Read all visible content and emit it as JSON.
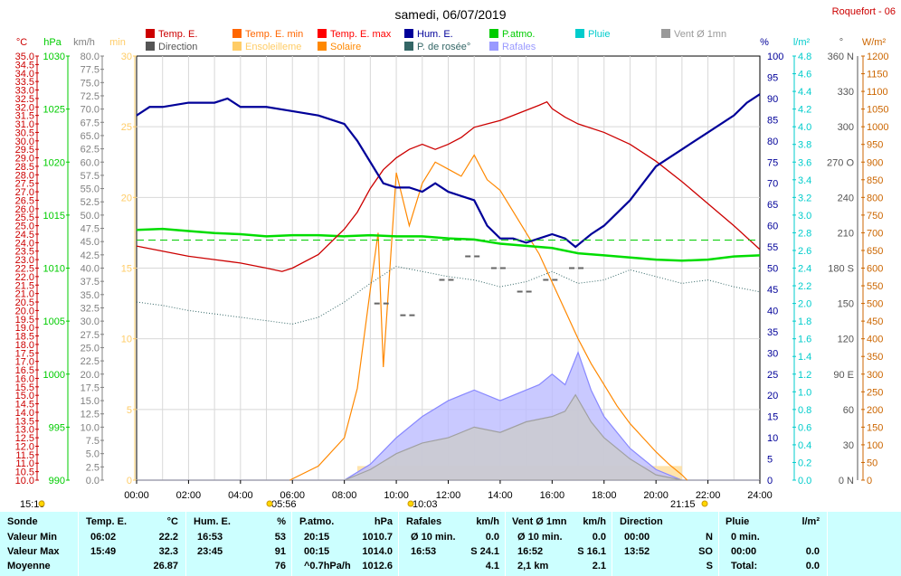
{
  "chart_data": {
    "type": "line",
    "title": "samedi, 06/07/2019",
    "station": "Roquefort - 06",
    "legend": [
      {
        "label": "Temp. E.",
        "color": "#cc0000"
      },
      {
        "label": "Temp. E. min",
        "color": "#ff6600"
      },
      {
        "label": "Temp. E. max",
        "color": "#ff0000"
      },
      {
        "label": "Hum. E.",
        "color": "#000099"
      },
      {
        "label": "P.atmo.",
        "color": "#00cc00"
      },
      {
        "label": "Pluie",
        "color": "#00cccc"
      },
      {
        "label": "Vent Ø 1mn",
        "color": "#999999"
      },
      {
        "label": "Direction",
        "color": "#555555"
      },
      {
        "label": "Ensoleilleme",
        "color": "#ffcc66"
      },
      {
        "label": "Solaire",
        "color": "#ff8800"
      },
      {
        "label": "P. de rosée°",
        "color": "#336666"
      },
      {
        "label": "Rafales",
        "color": "#9999ff"
      }
    ],
    "axes": {
      "temp": {
        "unit": "°C",
        "min": 10,
        "max": 35,
        "step": 0.5,
        "color": "#cc0000"
      },
      "pressure": {
        "unit": "hPa",
        "min": 990,
        "max": 1030,
        "step": 5,
        "color": "#00cc00"
      },
      "wind": {
        "unit": "km/h",
        "min": 0,
        "max": 80,
        "step": 2.5,
        "color": "#808080"
      },
      "min_axis": {
        "unit": "min",
        "min": 0,
        "max": 30,
        "step": 5,
        "color": "#ffcc66"
      },
      "humidity": {
        "unit": "%",
        "min": 0,
        "max": 100,
        "step": 5,
        "color": "#000099"
      },
      "rain": {
        "unit": "l/m²",
        "min": 0,
        "max": 4.8,
        "step": 0.2,
        "color": "#00cccc"
      },
      "direction": {
        "unit": "°",
        "ticks": [
          "0 N",
          "30",
          "60",
          "90 E",
          "120",
          "150",
          "180 S",
          "210",
          "240",
          "270 O",
          "300",
          "330",
          "360 N"
        ],
        "color": "#555555"
      },
      "solar": {
        "unit": "W/m²",
        "min": 0,
        "max": 1200,
        "step": 50,
        "color": "#cc6600"
      }
    },
    "x_ticks": [
      "00:00",
      "02:00",
      "04:00",
      "06:00",
      "08:00",
      "10:00",
      "12:00",
      "14:00",
      "16:00",
      "18:00",
      "20:00",
      "22:00",
      "24:00"
    ],
    "sun_markers": [
      {
        "label": "15:19",
        "note": "day length"
      },
      {
        "label": "05:56",
        "note": "sunrise"
      },
      {
        "label": "10:03",
        "note": "sunshine"
      },
      {
        "label": "21:15",
        "note": "sunset"
      }
    ],
    "series": [
      {
        "name": "Temp. E.",
        "axis": "temp",
        "x_hours": [
          0,
          1,
          2,
          3,
          4,
          5,
          5.6,
          6,
          7,
          8,
          8.5,
          9,
          9.5,
          10,
          10.5,
          11,
          11.5,
          12,
          12.5,
          13,
          13.5,
          14,
          14.5,
          15,
          15.5,
          15.8,
          16,
          16.5,
          17,
          18,
          19,
          20,
          21,
          22,
          23,
          24
        ],
        "values": [
          23.8,
          23.5,
          23.2,
          23.0,
          22.8,
          22.5,
          22.3,
          22.5,
          23.3,
          24.8,
          25.8,
          27.2,
          28.3,
          29.0,
          29.5,
          29.8,
          29.5,
          29.8,
          30.2,
          30.8,
          31.0,
          31.2,
          31.5,
          31.8,
          32.1,
          32.3,
          31.9,
          31.4,
          31.0,
          30.5,
          29.8,
          28.8,
          27.6,
          26.3,
          25.0,
          23.6
        ]
      },
      {
        "name": "Hum. E.",
        "axis": "humidity",
        "x_hours": [
          0,
          0.5,
          1,
          2,
          3,
          3.5,
          4,
          5,
          6,
          7,
          8,
          8.5,
          9,
          9.5,
          10,
          10.5,
          11,
          11.5,
          12,
          12.5,
          13,
          13.5,
          14,
          14.5,
          15,
          15.5,
          16,
          16.5,
          16.9,
          17.5,
          18,
          18.5,
          19,
          19.5,
          20,
          21,
          22,
          23,
          23.5,
          24
        ],
        "values": [
          86,
          88,
          88,
          89,
          89,
          90,
          88,
          88,
          87,
          86,
          84,
          80,
          75,
          70,
          69,
          69,
          68,
          70,
          68,
          67,
          66,
          60,
          57,
          57,
          56,
          57,
          58,
          57,
          55,
          58,
          60,
          63,
          66,
          70,
          74,
          78,
          82,
          86,
          89,
          91
        ]
      },
      {
        "name": "P.atmo.",
        "axis": "pressure",
        "x_hours": [
          0,
          1,
          2,
          3,
          4,
          5,
          6,
          7,
          8,
          9,
          10,
          11,
          12,
          13,
          14,
          15,
          16,
          17,
          18,
          19,
          20,
          21,
          22,
          23,
          24
        ],
        "values": [
          1013.6,
          1013.7,
          1013.5,
          1013.3,
          1013.2,
          1013.0,
          1013.1,
          1013.1,
          1013.0,
          1013.1,
          1013.0,
          1013.0,
          1012.8,
          1012.7,
          1012.3,
          1012.1,
          1011.9,
          1011.4,
          1011.2,
          1011.0,
          1010.8,
          1010.7,
          1010.8,
          1011.1,
          1011.2
        ]
      },
      {
        "name": "P. de rosée°",
        "axis": "temp",
        "x_hours": [
          0,
          1,
          2,
          3,
          4,
          5,
          6,
          7,
          8,
          9,
          10,
          11,
          12,
          13,
          14,
          15,
          16,
          17,
          18,
          19,
          20,
          21,
          22,
          23,
          24
        ],
        "values": [
          20.5,
          20.3,
          20.0,
          19.8,
          19.6,
          19.4,
          19.2,
          19.6,
          20.5,
          21.6,
          22.6,
          22.3,
          22.0,
          21.8,
          21.4,
          21.7,
          22.3,
          21.6,
          21.8,
          22.4,
          22.0,
          21.6,
          21.8,
          21.4,
          21.1
        ]
      },
      {
        "name": "Solaire",
        "axis": "solar",
        "x_hours": [
          5.9,
          7,
          8,
          8.5,
          9,
          9.3,
          9.5,
          10,
          10.5,
          11,
          11.5,
          12,
          12.5,
          13,
          13.5,
          14,
          14.5,
          15,
          15.5,
          16,
          16.5,
          17,
          17.5,
          18,
          18.5,
          19,
          19.5,
          20,
          20.5,
          21,
          21.2
        ],
        "values": [
          0,
          40,
          120,
          260,
          540,
          700,
          320,
          870,
          720,
          840,
          900,
          880,
          860,
          920,
          850,
          820,
          760,
          700,
          640,
          560,
          480,
          400,
          330,
          270,
          210,
          160,
          120,
          80,
          45,
          15,
          0
        ]
      },
      {
        "name": "Rafales",
        "axis": "wind",
        "x_hours": [
          0,
          8,
          9,
          10,
          11,
          12,
          13,
          14,
          15,
          15.5,
          16,
          16.5,
          17,
          17.5,
          18,
          19,
          20,
          21,
          24
        ],
        "values": [
          0,
          0,
          3,
          8,
          12,
          15,
          17,
          15,
          17,
          18,
          20,
          18,
          24.1,
          17,
          12,
          6,
          2,
          0,
          0
        ]
      },
      {
        "name": "Vent Ø 1mn",
        "axis": "wind",
        "x_hours": [
          0,
          8,
          9,
          10,
          11,
          12,
          13,
          14,
          15,
          16,
          16.5,
          16.9,
          17.5,
          18,
          19,
          20,
          21,
          24
        ],
        "values": [
          0,
          0,
          2,
          5,
          7,
          8,
          10,
          9,
          11,
          12,
          13,
          16.1,
          11,
          8,
          4,
          1,
          0,
          0
        ]
      },
      {
        "name": "Temp. E. max",
        "axis": "temp",
        "x_hours": [
          0,
          24
        ],
        "values": [
          null,
          null
        ]
      },
      {
        "name": "Direction",
        "axis": "direction",
        "x_hours": [
          9.5,
          10.5,
          12,
          13,
          14,
          15,
          16,
          17
        ],
        "values": [
          150,
          140,
          170,
          190,
          180,
          160,
          170,
          180
        ]
      },
      {
        "name": "Ensoleilleme",
        "axis": "min_axis",
        "x_hours": [
          8.5,
          21
        ],
        "values": [
          1,
          1
        ]
      }
    ]
  },
  "stats": {
    "headers": [
      "Sonde",
      "Temp. E.",
      "°C",
      "Hum. E.",
      "%",
      "P.atmo.",
      "hPa",
      "Rafales",
      "km/h",
      "Vent Ø 1mn",
      "km/h",
      "Direction",
      "Pluie",
      "l/m²"
    ],
    "rows": [
      {
        "label": "Valeur Min",
        "temp_time": "06:02",
        "temp_val": "22.2",
        "hum_time": "16:53",
        "hum_val": "53",
        "press_time": "20:15",
        "press_val": "1010.7",
        "gust_time": "Ø 10 min.",
        "gust_val": "0.0",
        "wind_time": "Ø 10 min.",
        "wind_val": "0.0",
        "dir_time": "00:00",
        "dir_val": "N",
        "rain_time": "0 min.",
        "rain_val": ""
      },
      {
        "label": "Valeur Max",
        "temp_time": "15:49",
        "temp_val": "32.3",
        "hum_time": "23:45",
        "hum_val": "91",
        "press_time": "00:15",
        "press_val": "1014.0",
        "gust_time": "16:53",
        "gust_val": "S 24.1",
        "wind_time": "16:52",
        "wind_val": "S 16.1",
        "dir_time": "13:52",
        "dir_val": "SO",
        "rain_time": "00:00",
        "rain_val": "0.0"
      },
      {
        "label": "Moyenne",
        "temp_time": "",
        "temp_val": "26.87",
        "hum_time": "",
        "hum_val": "76",
        "press_time": "^0.7hPa/h",
        "press_val": "1012.6",
        "gust_time": "",
        "gust_val": "4.1",
        "wind_time": "2,1 km",
        "wind_val": "2.1",
        "dir_time": "",
        "dir_val": "S",
        "rain_time": "Total:",
        "rain_val": "0.0"
      }
    ]
  }
}
